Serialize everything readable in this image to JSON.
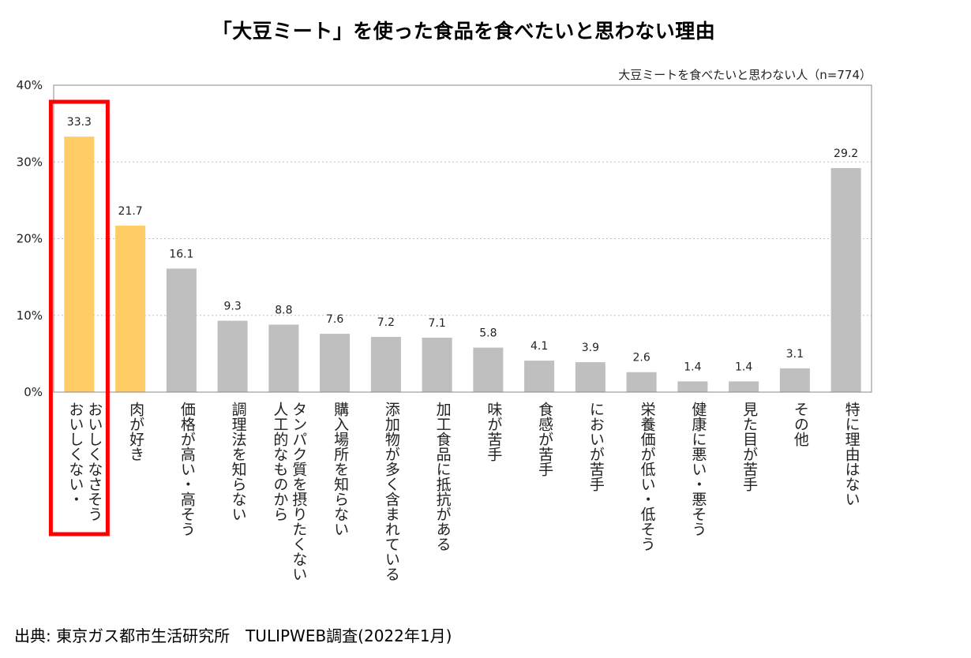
{
  "title": "「大豆ミート」を使った食品を食べたいと思わない理由",
  "source": "出典: 東京ガス都市生活研究所　TULIPWEB調査(2022年1月)",
  "colors": {
    "highlight": "#FFCC66",
    "normal": "#BFBFBF",
    "box": "#FF0000",
    "grid": "#BFBFBF"
  },
  "chart_data": {
    "type": "bar",
    "note": "大豆ミートを食べたいと思わない人（n=774）",
    "ylim": [
      0,
      40
    ],
    "yticks": [
      0,
      10,
      20,
      30,
      40
    ],
    "ytick_labels": [
      "0%",
      "10%",
      "20%",
      "30%",
      "40%"
    ],
    "categories": [
      [
        "おいしくない・",
        "おいしくなさそう"
      ],
      [
        "肉が好き"
      ],
      [
        "価格が高い・高そう"
      ],
      [
        "調理法を知らない"
      ],
      [
        "人工的なものから",
        "タンパク質を摂りたくない"
      ],
      [
        "購入場所を知らない"
      ],
      [
        "添加物が多く含まれている"
      ],
      [
        "加工食品に抵抗がある"
      ],
      [
        "味が苦手"
      ],
      [
        "食感が苦手"
      ],
      [
        "においが苦手"
      ],
      [
        "栄養価が低い・低そう"
      ],
      [
        "健康に悪い・悪そう"
      ],
      [
        "見た目が苦手"
      ],
      [
        "その他"
      ],
      [
        "特に理由はない"
      ]
    ],
    "values": [
      33.3,
      21.7,
      16.1,
      9.3,
      8.8,
      7.6,
      7.2,
      7.1,
      5.8,
      4.1,
      3.9,
      2.6,
      1.4,
      1.4,
      3.1,
      29.2
    ],
    "value_labels": [
      "33.3",
      "21.7",
      "16.1",
      "9.3",
      "8.8",
      "7.6",
      "7.2",
      "7.1",
      "5.8",
      "4.1",
      "3.9",
      "2.6",
      "1.4",
      "1.4",
      "3.1",
      "29.2"
    ],
    "highlighted": [
      0,
      1
    ],
    "boxed": 0,
    "grid": true
  }
}
